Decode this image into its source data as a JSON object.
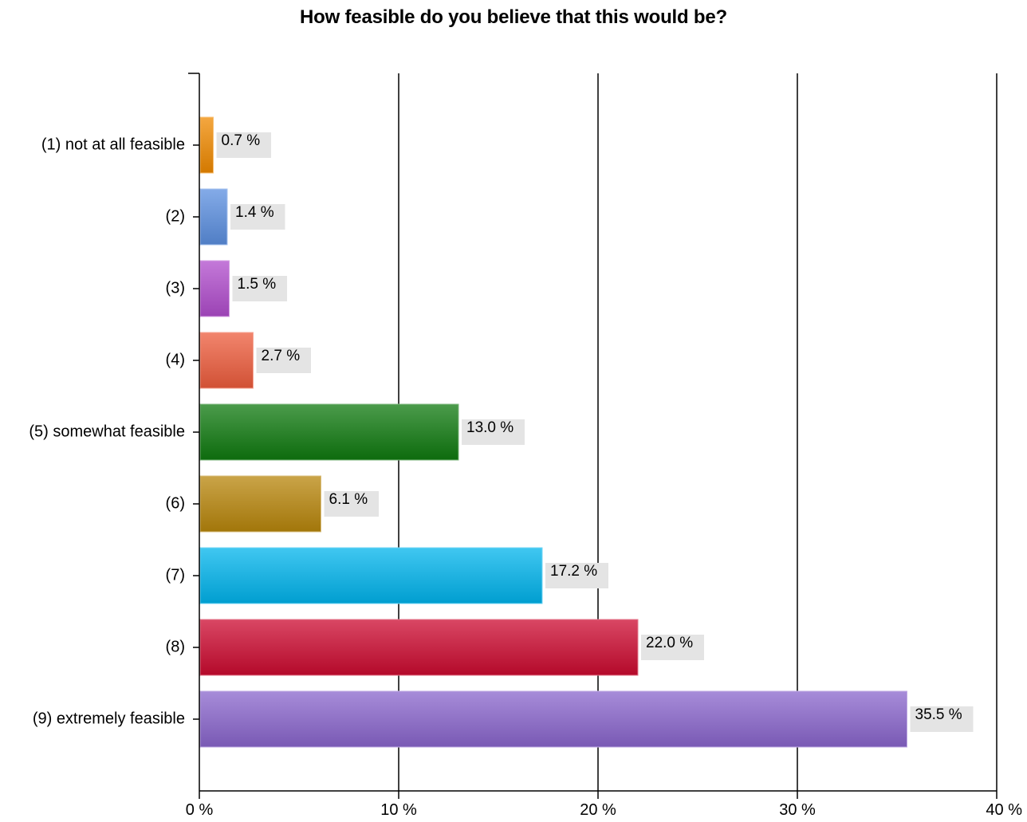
{
  "chart_data": {
    "type": "bar",
    "orientation": "horizontal",
    "title": "How feasible do you believe that this would be?",
    "categories": [
      "(1) not at all feasible",
      "(2)",
      "(3)",
      "(4)",
      "(5) somewhat feasible",
      "(6)",
      "(7)",
      "(8)",
      "(9) extremely feasible"
    ],
    "values": [
      0.7,
      1.4,
      1.5,
      2.7,
      13.0,
      6.1,
      17.2,
      22.0,
      35.5
    ],
    "data_labels": [
      "0.7 %",
      "1.4 %",
      "1.5 %",
      "2.7 %",
      "13.0 %",
      "6.1 %",
      "17.2 %",
      "22.0 %",
      "35.5 %"
    ],
    "colors": [
      "#f08a00",
      "#5b8fe0",
      "#b04ccc",
      "#ee5c3c",
      "#0f7a0f",
      "#b8860b",
      "#00b4ec",
      "#cc0a30",
      "#8a65cc"
    ],
    "xlim": [
      0,
      40
    ],
    "x_ticks": [
      0,
      10,
      20,
      30,
      40
    ],
    "x_tick_labels": [
      "0 %",
      "10 %",
      "20 %",
      "30 %",
      "40 %"
    ],
    "grid": true,
    "xlabel": "",
    "ylabel": ""
  }
}
